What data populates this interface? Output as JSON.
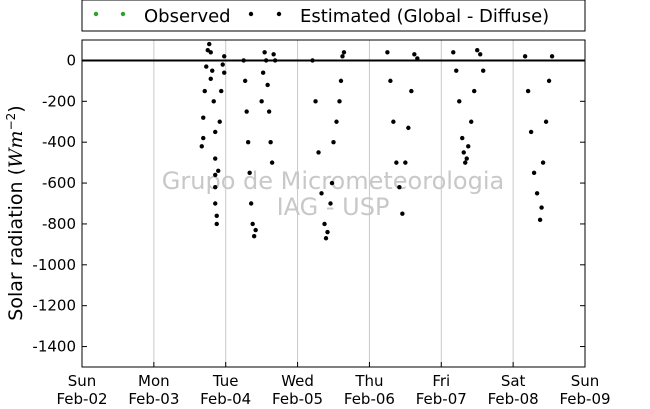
{
  "chart_data": {
    "type": "scatter",
    "title": "",
    "ylabel_text": "Solar radiation (",
    "ylabel_unit_main": "Wm",
    "ylabel_unit_sup": "−2",
    "ylabel_close": ")",
    "ylim": [
      -1500,
      100
    ],
    "yticks": [
      0,
      -200,
      -400,
      -600,
      -800,
      -1000,
      -1200,
      -1400
    ],
    "xlim_days": [
      "Feb-02",
      "Feb-09"
    ],
    "xticks": [
      {
        "day": "Sun",
        "date": "Feb-02"
      },
      {
        "day": "Mon",
        "date": "Feb-03"
      },
      {
        "day": "Tue",
        "date": "Feb-04"
      },
      {
        "day": "Wed",
        "date": "Feb-05"
      },
      {
        "day": "Thu",
        "date": "Feb-06"
      },
      {
        "day": "Fri",
        "date": "Feb-07"
      },
      {
        "day": "Sat",
        "date": "Feb-08"
      },
      {
        "day": "Sun",
        "date": "Feb-09"
      }
    ],
    "grid": "vertical",
    "zero_line": true,
    "legend_position": "top",
    "series": [
      {
        "name": "Observed",
        "color": "#2ca02c",
        "points": []
      },
      {
        "name": "Estimated (Global - Diffuse)",
        "color": "#000000",
        "points": [
          {
            "date": "Feb-03",
            "hour": 18,
            "value": 50
          },
          {
            "date": "Feb-03",
            "hour": 17.5,
            "value": -30
          },
          {
            "date": "Feb-03",
            "hour": 17,
            "value": -150
          },
          {
            "date": "Feb-03",
            "hour": 16.5,
            "value": -280
          },
          {
            "date": "Feb-03",
            "hour": 16,
            "value": -420
          },
          {
            "date": "Feb-03",
            "hour": 16.5,
            "value": -380
          },
          {
            "date": "Feb-03",
            "hour": 18.5,
            "value": 80
          },
          {
            "date": "Feb-03",
            "hour": 19,
            "value": 40
          },
          {
            "date": "Feb-03",
            "hour": 19,
            "value": -90
          },
          {
            "date": "Feb-03",
            "hour": 19.5,
            "value": -50
          },
          {
            "date": "Feb-03",
            "hour": 20,
            "value": -200
          },
          {
            "date": "Feb-03",
            "hour": 20.5,
            "value": -350
          },
          {
            "date": "Feb-03",
            "hour": 20.5,
            "value": -480
          },
          {
            "date": "Feb-03",
            "hour": 20.5,
            "value": -560
          },
          {
            "date": "Feb-03",
            "hour": 20.5,
            "value": -620
          },
          {
            "date": "Feb-03",
            "hour": 20.5,
            "value": -700
          },
          {
            "date": "Feb-03",
            "hour": 21,
            "value": -760
          },
          {
            "date": "Feb-03",
            "hour": 21,
            "value": -800
          },
          {
            "date": "Feb-03",
            "hour": 21.5,
            "value": -540
          },
          {
            "date": "Feb-03",
            "hour": 22,
            "value": -300
          },
          {
            "date": "Feb-03",
            "hour": 22.5,
            "value": -150
          },
          {
            "date": "Feb-03",
            "hour": 23,
            "value": -20
          },
          {
            "date": "Feb-03",
            "hour": 23.5,
            "value": 20
          },
          {
            "date": "Feb-03",
            "hour": 23.5,
            "value": -60
          },
          {
            "date": "Feb-04",
            "hour": 6,
            "value": 0
          },
          {
            "date": "Feb-04",
            "hour": 6.5,
            "value": -100
          },
          {
            "date": "Feb-04",
            "hour": 7,
            "value": -250
          },
          {
            "date": "Feb-04",
            "hour": 7.5,
            "value": -400
          },
          {
            "date": "Feb-04",
            "hour": 8,
            "value": -550
          },
          {
            "date": "Feb-04",
            "hour": 8.5,
            "value": -700
          },
          {
            "date": "Feb-04",
            "hour": 9,
            "value": -800
          },
          {
            "date": "Feb-04",
            "hour": 9.5,
            "value": -860
          },
          {
            "date": "Feb-04",
            "hour": 10,
            "value": -830
          },
          {
            "date": "Feb-04",
            "hour": 12,
            "value": -200
          },
          {
            "date": "Feb-04",
            "hour": 12.5,
            "value": -60
          },
          {
            "date": "Feb-04",
            "hour": 13,
            "value": 40
          },
          {
            "date": "Feb-04",
            "hour": 13.5,
            "value": 0
          },
          {
            "date": "Feb-04",
            "hour": 14,
            "value": -120
          },
          {
            "date": "Feb-04",
            "hour": 14.5,
            "value": -250
          },
          {
            "date": "Feb-04",
            "hour": 15,
            "value": -400
          },
          {
            "date": "Feb-04",
            "hour": 15.5,
            "value": -500
          },
          {
            "date": "Feb-04",
            "hour": 16,
            "value": 30
          },
          {
            "date": "Feb-04",
            "hour": 16.5,
            "value": 0
          },
          {
            "date": "Feb-05",
            "hour": 5,
            "value": 0
          },
          {
            "date": "Feb-05",
            "hour": 6,
            "value": -200
          },
          {
            "date": "Feb-05",
            "hour": 7,
            "value": -450
          },
          {
            "date": "Feb-05",
            "hour": 8,
            "value": -650
          },
          {
            "date": "Feb-05",
            "hour": 9,
            "value": -800
          },
          {
            "date": "Feb-05",
            "hour": 9.5,
            "value": -870
          },
          {
            "date": "Feb-05",
            "hour": 10,
            "value": -840
          },
          {
            "date": "Feb-05",
            "hour": 11,
            "value": -700
          },
          {
            "date": "Feb-05",
            "hour": 11.5,
            "value": -600
          },
          {
            "date": "Feb-05",
            "hour": 12,
            "value": -400
          },
          {
            "date": "Feb-05",
            "hour": 13,
            "value": -300
          },
          {
            "date": "Feb-05",
            "hour": 14,
            "value": -200
          },
          {
            "date": "Feb-05",
            "hour": 14.5,
            "value": -100
          },
          {
            "date": "Feb-05",
            "hour": 15,
            "value": 20
          },
          {
            "date": "Feb-05",
            "hour": 15.5,
            "value": 40
          },
          {
            "date": "Feb-06",
            "hour": 6,
            "value": 40
          },
          {
            "date": "Feb-06",
            "hour": 7,
            "value": -100
          },
          {
            "date": "Feb-06",
            "hour": 8,
            "value": -300
          },
          {
            "date": "Feb-06",
            "hour": 9,
            "value": -500
          },
          {
            "date": "Feb-06",
            "hour": 10,
            "value": -620
          },
          {
            "date": "Feb-06",
            "hour": 11,
            "value": -750
          },
          {
            "date": "Feb-06",
            "hour": 12,
            "value": -500
          },
          {
            "date": "Feb-06",
            "hour": 13,
            "value": -330
          },
          {
            "date": "Feb-06",
            "hour": 14,
            "value": -150
          },
          {
            "date": "Feb-06",
            "hour": 15,
            "value": 30
          },
          {
            "date": "Feb-06",
            "hour": 16,
            "value": 10
          },
          {
            "date": "Feb-07",
            "hour": 4,
            "value": 40
          },
          {
            "date": "Feb-07",
            "hour": 5,
            "value": -50
          },
          {
            "date": "Feb-07",
            "hour": 6,
            "value": -200
          },
          {
            "date": "Feb-07",
            "hour": 7,
            "value": -380
          },
          {
            "date": "Feb-07",
            "hour": 7.5,
            "value": -450
          },
          {
            "date": "Feb-07",
            "hour": 8,
            "value": -500
          },
          {
            "date": "Feb-07",
            "hour": 8.5,
            "value": -480
          },
          {
            "date": "Feb-07",
            "hour": 9,
            "value": -420
          },
          {
            "date": "Feb-07",
            "hour": 10,
            "value": -300
          },
          {
            "date": "Feb-07",
            "hour": 11,
            "value": -150
          },
          {
            "date": "Feb-07",
            "hour": 12,
            "value": 50
          },
          {
            "date": "Feb-07",
            "hour": 13,
            "value": 30
          },
          {
            "date": "Feb-07",
            "hour": 14,
            "value": -50
          },
          {
            "date": "Feb-08",
            "hour": 4,
            "value": 20
          },
          {
            "date": "Feb-08",
            "hour": 5,
            "value": -150
          },
          {
            "date": "Feb-08",
            "hour": 6,
            "value": -350
          },
          {
            "date": "Feb-08",
            "hour": 7,
            "value": -550
          },
          {
            "date": "Feb-08",
            "hour": 8,
            "value": -650
          },
          {
            "date": "Feb-08",
            "hour": 9,
            "value": -780
          },
          {
            "date": "Feb-08",
            "hour": 9.5,
            "value": -720
          },
          {
            "date": "Feb-08",
            "hour": 10,
            "value": -500
          },
          {
            "date": "Feb-08",
            "hour": 11,
            "value": -300
          },
          {
            "date": "Feb-08",
            "hour": 12,
            "value": -100
          },
          {
            "date": "Feb-08",
            "hour": 13,
            "value": 20
          }
        ]
      }
    ],
    "watermark_line1": "Grupo de Micrometeorologia",
    "watermark_line2": "IAG - USP"
  }
}
